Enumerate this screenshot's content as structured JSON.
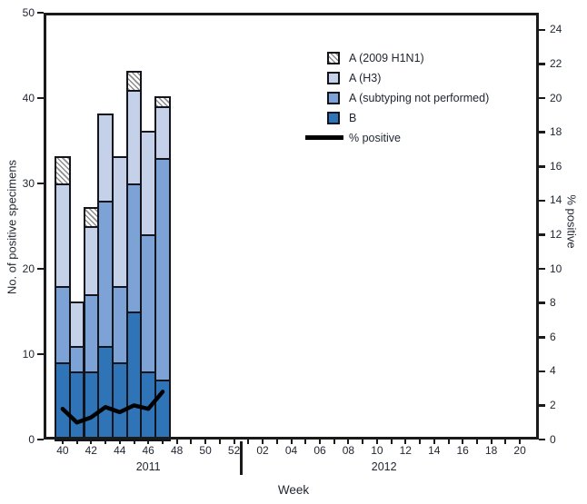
{
  "figure": {
    "y_left_title": "No. of positive specimens",
    "y_right_title": "% positive",
    "x_title": "Week",
    "year_left": "2011",
    "year_right": "2012"
  },
  "legend": {
    "items": [
      {
        "label": "A (2009 H1N1)",
        "swatch": "hatch"
      },
      {
        "label": "A (H3)",
        "swatch": "#c5d0e9"
      },
      {
        "label": "A (subtyping not performed)",
        "swatch": "#7da2d5"
      },
      {
        "label": "B",
        "swatch": "#2e74b7"
      },
      {
        "label": "% positive",
        "swatch": "line"
      }
    ]
  },
  "colors": {
    "b": "#2e74b7",
    "a_subtyping": "#7da2d5",
    "a_h3": "#c5d0e9",
    "hatch_line": "#8c8c8c",
    "hatch_bg": "#ffffff",
    "percent_line": "#000000",
    "frame": "#1a1a1a",
    "bar_border": "#14141c",
    "text": "#1f2530"
  },
  "chart_data": {
    "type": "bar",
    "subtype": "stacked-bars-with-percent-line",
    "title": "",
    "xlabel": "Week",
    "ylabel_left": "No. of positive specimens",
    "ylabel_right": "% positive",
    "ylim_left": [
      0,
      50
    ],
    "yticks_left": [
      0,
      10,
      20,
      30,
      40,
      50
    ],
    "ylim_right": [
      0,
      25
    ],
    "yticks_right": [
      0,
      2,
      4,
      6,
      8,
      10,
      12,
      14,
      16,
      18,
      20,
      22,
      24
    ],
    "grid": false,
    "legend_position": "upper-center-right",
    "x_categories_full": [
      "40",
      "41",
      "42",
      "43",
      "44",
      "45",
      "46",
      "47",
      "48",
      "49",
      "50",
      "51",
      "52",
      "01",
      "02",
      "03",
      "04",
      "05",
      "06",
      "07",
      "08",
      "09",
      "10",
      "11",
      "12",
      "13",
      "14",
      "15",
      "16",
      "17",
      "18",
      "19",
      "20"
    ],
    "x_label_every_even_week": true,
    "year_groups": [
      {
        "label": "2011",
        "weeks": 13
      },
      {
        "label": "2012",
        "weeks": 20
      }
    ],
    "x": [
      "40",
      "41",
      "42",
      "43",
      "44",
      "45",
      "46",
      "47"
    ],
    "series": [
      {
        "name": "B",
        "color": "#2e74b7",
        "hatch": false,
        "values": [
          9,
          8,
          8,
          11,
          9,
          15,
          8,
          7
        ]
      },
      {
        "name": "A (subtyping not performed)",
        "color": "#7da2d5",
        "hatch": false,
        "values": [
          9,
          3,
          9,
          17,
          9,
          15,
          16,
          26
        ]
      },
      {
        "name": "A (H3)",
        "color": "#c5d0e9",
        "hatch": false,
        "values": [
          12,
          5,
          8,
          10,
          15,
          11,
          12,
          6
        ]
      },
      {
        "name": "A (2009 H1N1)",
        "color": "hatch",
        "hatch": true,
        "values": [
          3,
          0,
          2,
          0,
          0,
          2,
          0,
          1
        ]
      }
    ],
    "bar_totals": [
      33,
      16,
      27,
      38,
      33,
      43,
      36,
      40
    ],
    "line_series": {
      "name": "% positive",
      "axis": "right",
      "color": "#000000",
      "values": [
        1.8,
        1.0,
        1.3,
        1.9,
        1.6,
        2.0,
        1.8,
        2.8
      ]
    }
  }
}
